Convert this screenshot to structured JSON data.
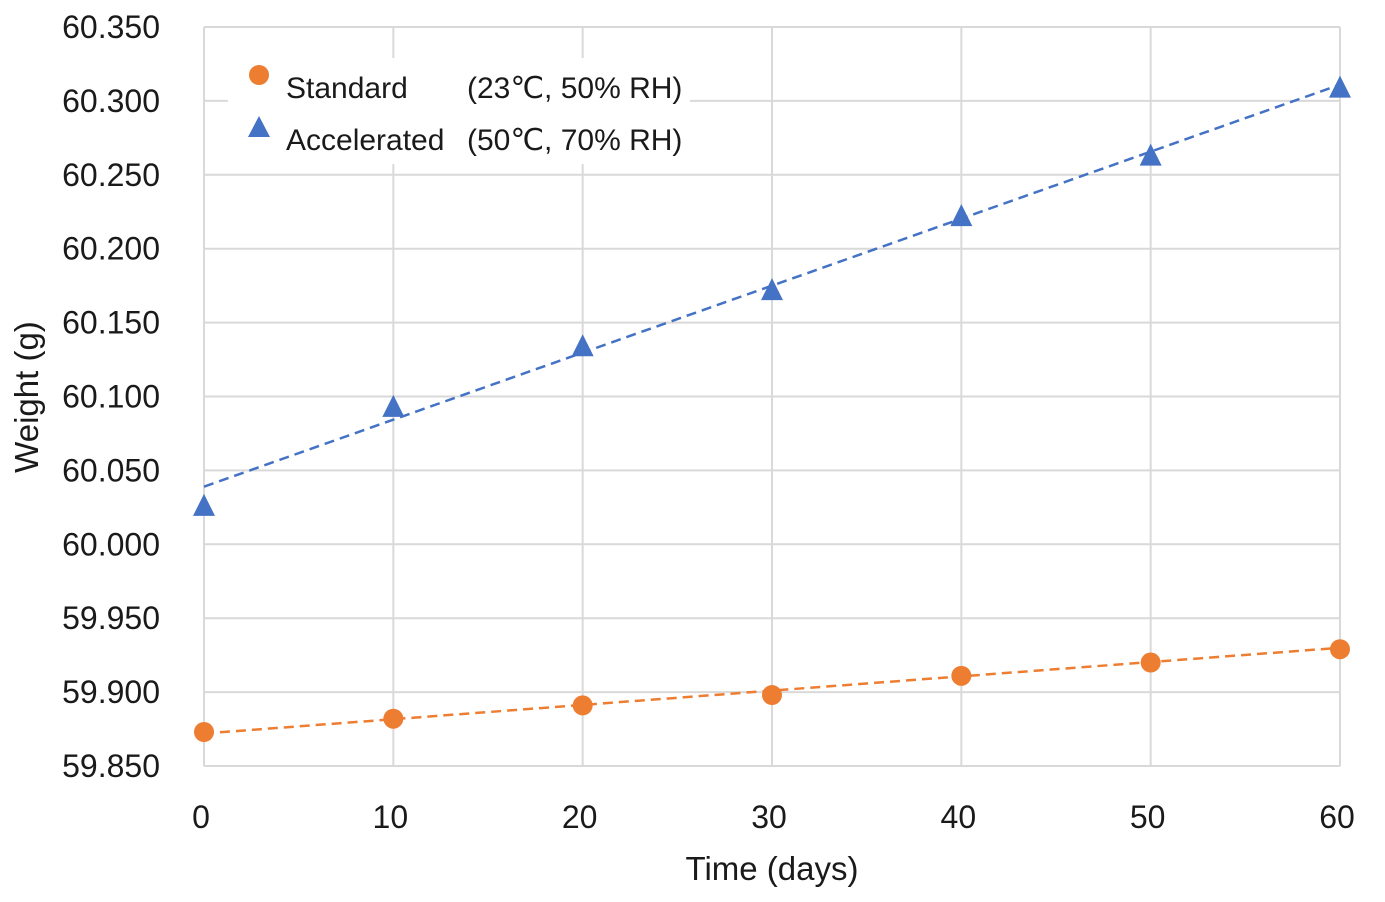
{
  "chart_data": {
    "type": "scatter",
    "title": "",
    "xlabel": "Time (days)",
    "ylabel": "Weight  (g)",
    "xlim": [
      0,
      60
    ],
    "ylim": [
      59.85,
      60.35
    ],
    "x_ticks": [
      0,
      10,
      20,
      30,
      40,
      50,
      60
    ],
    "x_tick_labels": [
      "0",
      "10",
      "20",
      "30",
      "40",
      "50",
      "60"
    ],
    "y_ticks": [
      59.85,
      59.9,
      59.95,
      60.0,
      60.05,
      60.1,
      60.15,
      60.2,
      60.25,
      60.3,
      60.35
    ],
    "y_tick_labels": [
      "59.850",
      "59.900",
      "59.950",
      "60.000",
      "60.050",
      "60.100",
      "60.150",
      "60.200",
      "60.250",
      "60.300",
      "60.350"
    ],
    "grid": true,
    "legend_position": "top-left",
    "series": [
      {
        "name": "Standard",
        "condition": "(23℃, 50% RH)",
        "marker": "circle",
        "color": "#ED7D31",
        "x": [
          0,
          10,
          20,
          30,
          40,
          50,
          60
        ],
        "y": [
          59.873,
          59.882,
          59.891,
          59.898,
          59.911,
          59.92,
          59.929
        ],
        "trendline": {
          "type": "linear",
          "style": "dashed",
          "y_start": 59.872,
          "y_end": 59.93
        }
      },
      {
        "name": "Accelerated",
        "condition": "(50℃, 70% RH)",
        "marker": "triangle",
        "color": "#4472C4",
        "x": [
          0,
          10,
          20,
          30,
          40,
          50,
          60
        ],
        "y": [
          60.026,
          60.093,
          60.134,
          60.172,
          60.222,
          60.263,
          60.309
        ],
        "trendline": {
          "type": "linear",
          "style": "dashed",
          "y_start": 60.039,
          "y_end": 60.311
        }
      }
    ]
  }
}
